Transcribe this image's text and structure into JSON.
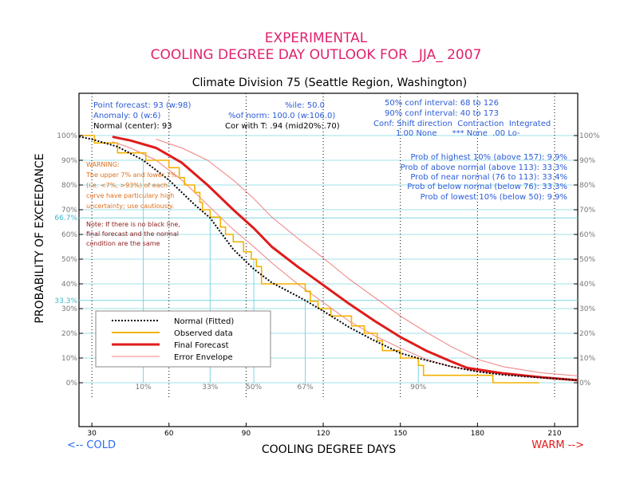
{
  "colors": {
    "title": "#e0226e",
    "blue_text": "#2a5bd7",
    "cyan": "#7fd6e3",
    "warning": "#e0701a",
    "note": "#8b1a1a",
    "normal": "#000000",
    "observed": "#f2b200",
    "forecast": "#e01b1b",
    "envelope": "#f08080",
    "cold": "#2a6bf2",
    "warm": "#e01b1b"
  },
  "header": {
    "line1": "EXPERIMENTAL",
    "line2": "COOLING DEGREE DAY OUTLOOK FOR _JJA_ 2007",
    "subtitle": "Climate Division 75 (Seattle Region, Washington)"
  },
  "stats": {
    "point_forecast": "Point forecast: 93 (w:98)",
    "anomaly": "Anomaly: 0 (w:6)",
    "normal_center": "Normal (center): 93",
    "ile": "%ile: 50.0",
    "of_norm": "%of norm: 100.0 (w:106.0)",
    "cor_with_t": "Cor with T: .94 (mid20%:.70)",
    "conf50": "50% conf interval: 68 to 126",
    "conf90": "90% conf interval: 40 to 173",
    "conf_header": "Conf: Shift direction  Contraction  Integrated",
    "conf_values": "1.00 None      *** None  .00 Lo-"
  },
  "probs": [
    "Prob of highest 10% (above 157): 9.9%",
    "Prob of above normal (above 113): 33.3%",
    "Prob of near normal (76 to 113): 33.4%",
    "Prob of below normal (below 76): 33.3%",
    "Prob of lowest 10% (below 50): 9.9%"
  ],
  "warning": [
    "WARNING:",
    "The upper 7% and lower 7%",
    "(i.e. <7%, >93%) of each",
    "curve have particulary high",
    "uncertainty; use cautiously."
  ],
  "note": [
    "Note: If there is no black line,",
    "final forecast and  the normal",
    "condition are the same"
  ],
  "legend": {
    "normal": "Normal (Fitted)",
    "observed": "Observed data",
    "forecast": "Final Forecast",
    "envelope": "Error Envelope"
  },
  "footer": {
    "cold": "<-- COLD",
    "warm": "WARM -->"
  },
  "chart_data": {
    "type": "line",
    "xlabel": "COOLING DEGREE DAYS",
    "ylabel": "PROBABILITY OF EXCEEDANCE",
    "xlim": [
      25,
      219
    ],
    "ylim": [
      0,
      100
    ],
    "x_ticks": [
      30,
      60,
      90,
      120,
      150,
      180,
      210
    ],
    "y_ticks": [
      0,
      10,
      20,
      30,
      40,
      50,
      60,
      70,
      80,
      90,
      100
    ],
    "y_tick_labels": [
      "0%",
      "10%",
      "20%",
      "30%",
      "40%",
      "50%",
      "60%",
      "70%",
      "80%",
      "90%",
      "100%"
    ],
    "percentile_lines": [
      {
        "label": "10%",
        "x": 50
      },
      {
        "label": "33%",
        "x": 76
      },
      {
        "label": "50%",
        "x": 93
      },
      {
        "label": "67%",
        "x": 113
      },
      {
        "label": "90%",
        "x": 157
      }
    ],
    "reference_lines": [
      {
        "label": "66.7%",
        "y": 66.7
      },
      {
        "label": "33.3%",
        "y": 33.3
      }
    ],
    "series": [
      {
        "name": "Normal (Fitted)",
        "style": "dotted",
        "x": [
          25,
          30,
          40,
          50,
          60,
          70,
          76,
          80,
          85,
          93,
          100,
          110,
          113,
          120,
          130,
          140,
          150,
          157,
          170,
          180,
          190,
          200,
          219
        ],
        "y": [
          99.6,
          98.5,
          95.5,
          90,
          82,
          72,
          66.7,
          61,
          54,
          46,
          40.5,
          35,
          33.3,
          29,
          22.5,
          17,
          12,
          9.9,
          6.5,
          4.5,
          3.2,
          2.4,
          1.0
        ]
      },
      {
        "name": "Observed data",
        "style": "step",
        "x": [
          25,
          31,
          33,
          38,
          40,
          43,
          45,
          51,
          56,
          60,
          64,
          66,
          70,
          72,
          73,
          76,
          80,
          82,
          85,
          89,
          92,
          94,
          96,
          101,
          106,
          111,
          113,
          115,
          118,
          123,
          128,
          131,
          136,
          141,
          143,
          146,
          150,
          154,
          157,
          159,
          165,
          171,
          176,
          181,
          186,
          204
        ],
        "y": [
          100,
          97,
          97,
          97,
          93,
          93,
          93,
          90,
          90,
          87,
          83,
          80,
          77,
          73,
          70,
          67,
          63,
          60,
          57,
          53,
          50,
          47,
          40,
          40,
          40,
          40,
          37,
          33,
          30,
          27,
          27,
          23,
          20,
          17,
          13,
          13,
          10,
          10,
          7,
          3,
          3,
          3,
          3,
          3,
          0,
          0
        ]
      },
      {
        "name": "Final Forecast",
        "style": "solid",
        "x": [
          38,
          45,
          55,
          65,
          75,
          85,
          93,
          100,
          110,
          120,
          130,
          140,
          150,
          160,
          170,
          176,
          190,
          205,
          219
        ],
        "y": [
          99.5,
          98,
          95,
          89,
          80,
          70,
          62.5,
          55,
          47,
          39.5,
          32,
          25,
          18.5,
          13,
          8.5,
          6,
          3.8,
          2.2,
          1.0
        ]
      },
      {
        "name": "Error Envelope (upper)",
        "style": "thin",
        "x": [
          55,
          65,
          75,
          85,
          93,
          100,
          110,
          120,
          130,
          140,
          150,
          160,
          170,
          180,
          190,
          205,
          219
        ],
        "y": [
          98.5,
          95,
          90,
          82,
          74.5,
          67,
          58.5,
          50.5,
          42,
          34.5,
          27,
          20.5,
          14.5,
          9.5,
          6.5,
          4,
          2.8
        ]
      },
      {
        "name": "Error Envelope (lower)",
        "style": "thin",
        "x": [
          38,
          45,
          55,
          65,
          75,
          85,
          93,
          100,
          110,
          120,
          130,
          140,
          150,
          160,
          170,
          180,
          190,
          205,
          219
        ],
        "y": [
          97.5,
          95,
          90,
          82,
          72,
          62,
          55,
          48.5,
          40,
          32.5,
          25,
          19,
          14,
          9.5,
          6.5,
          4.5,
          3.5,
          2.2,
          1.2
        ]
      }
    ]
  }
}
